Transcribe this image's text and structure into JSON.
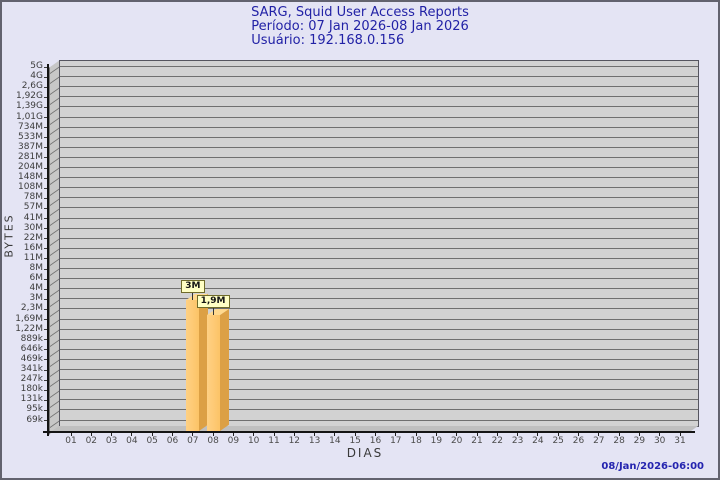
{
  "chart_data": {
    "type": "bar",
    "title": "SARG, Squid User Access Reports",
    "subtitle_period": "Período: 07 Jan 2026-08 Jan 2026",
    "subtitle_user": "Usuário: 192.168.0.156",
    "xlabel": "DIAS",
    "ylabel": "BYTES",
    "y_scale": "log",
    "y_top_value": 5000000000,
    "y_bottom_value": 69000,
    "y_tick_labels": [
      "5G",
      "4G",
      "2,6G",
      "1,92G",
      "1,39G",
      "1,01G",
      "734M",
      "533M",
      "387M",
      "281M",
      "204M",
      "148M",
      "108M",
      "78M",
      "57M",
      "41M",
      "30M",
      "22M",
      "16M",
      "11M",
      "8M",
      "6M",
      "4M",
      "3M",
      "2,3M",
      "1,69M",
      "1,22M",
      "889k",
      "646k",
      "469k",
      "341k",
      "247k",
      "180k",
      "131k",
      "95k",
      "69k"
    ],
    "x_categories": [
      "01",
      "02",
      "03",
      "04",
      "05",
      "06",
      "07",
      "08",
      "09",
      "10",
      "11",
      "12",
      "13",
      "14",
      "15",
      "16",
      "17",
      "18",
      "19",
      "20",
      "21",
      "22",
      "23",
      "24",
      "25",
      "26",
      "27",
      "28",
      "29",
      "30",
      "31"
    ],
    "bars": [
      {
        "day": "07",
        "value": 3000000,
        "label": "3M"
      },
      {
        "day": "08",
        "value": 1900000,
        "label": "1,9M"
      }
    ],
    "timestamp": "08/Jan/2026-06:00",
    "legend": "none",
    "grid": "horizontal"
  },
  "colors": {
    "page_bg": "#e4e4f4",
    "title_text": "#2222a6",
    "timestamp_text": "#2424af",
    "panel_bg": "#d2d2d2",
    "grid_line": "#6f6f6f",
    "bar_front": "#fcc367",
    "bar_front_highlight": "#ffd184",
    "bar_side": "#dca045",
    "bar_top": "#ffd98f",
    "callout_bg": "#ffffc4",
    "callout_border": "#6f6b2a"
  }
}
